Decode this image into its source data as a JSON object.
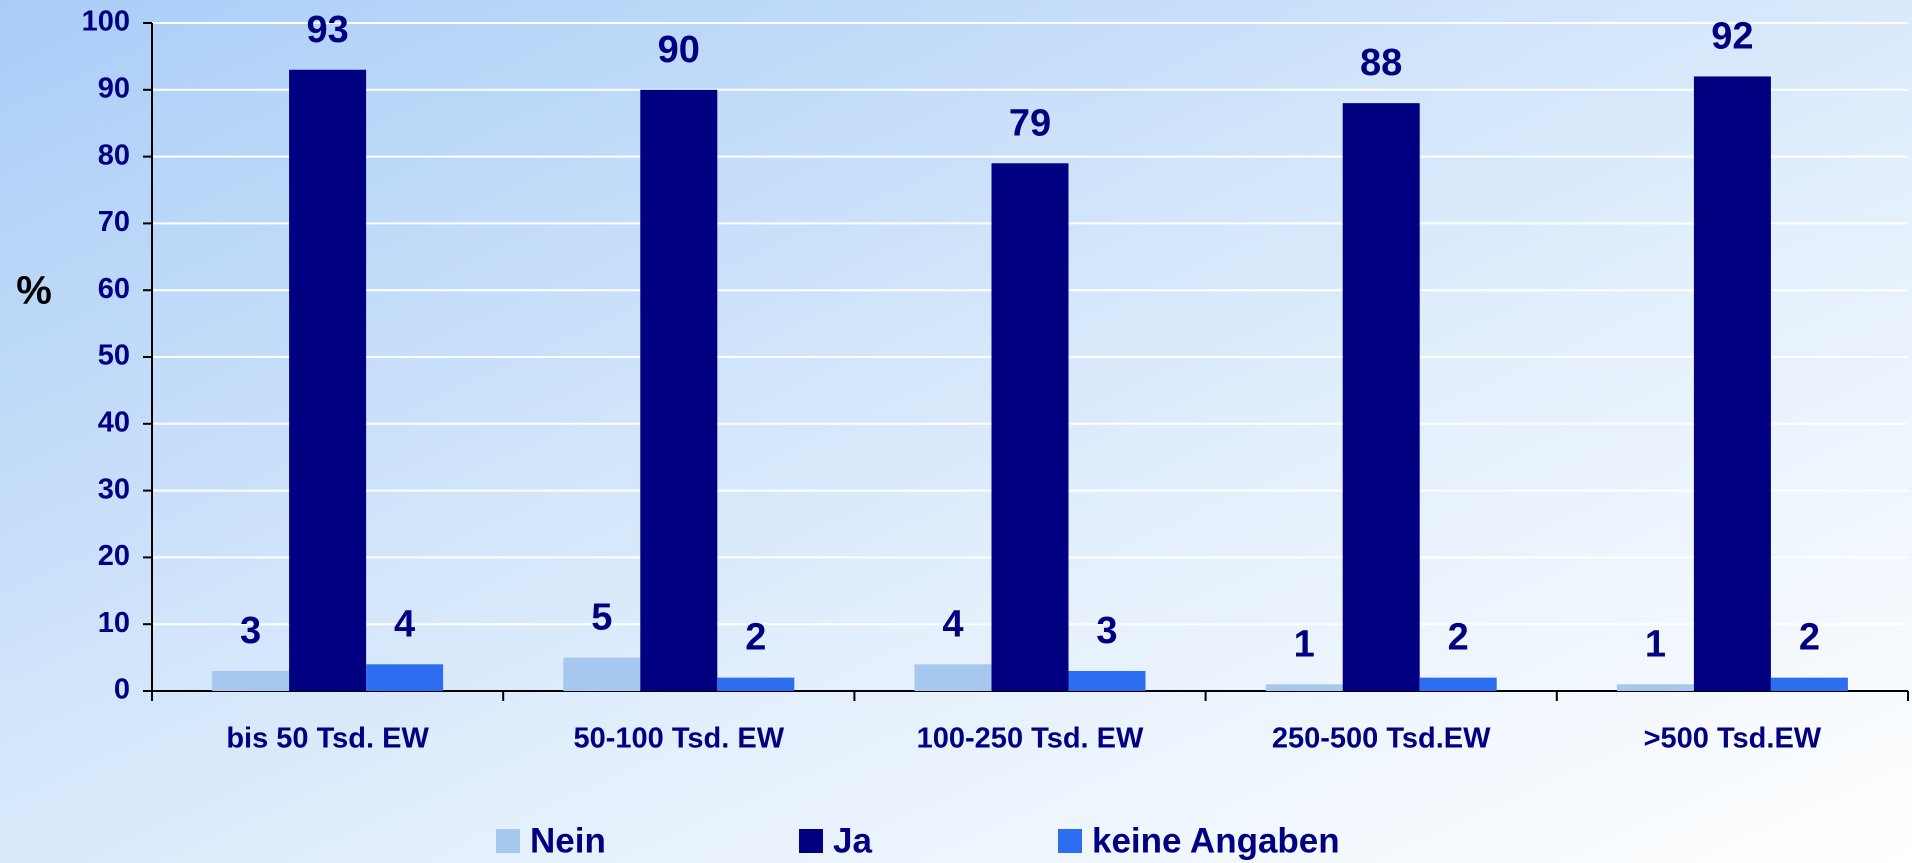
{
  "chart_data": {
    "type": "bar",
    "ylabel": "%",
    "categories": [
      "bis 50 Tsd.  EW",
      "50-100 Tsd. EW",
      "100-250 Tsd. EW",
      "250-500 Tsd.EW",
      ">500 Tsd.EW"
    ],
    "series": [
      {
        "name": "Nein",
        "color": "#a6c8ee",
        "values": [
          3,
          5,
          4,
          1,
          1
        ]
      },
      {
        "name": "Ja",
        "color": "#000080",
        "values": [
          93,
          90,
          79,
          88,
          92
        ]
      },
      {
        "name": "keine Angaben",
        "color": "#2d6ef0",
        "values": [
          4,
          2,
          3,
          2,
          2
        ]
      }
    ],
    "ylim": [
      0,
      100
    ],
    "yticks": [
      0,
      10,
      20,
      30,
      40,
      50,
      60,
      70,
      80,
      90,
      100
    ],
    "grid": true,
    "legend": "bottom"
  }
}
